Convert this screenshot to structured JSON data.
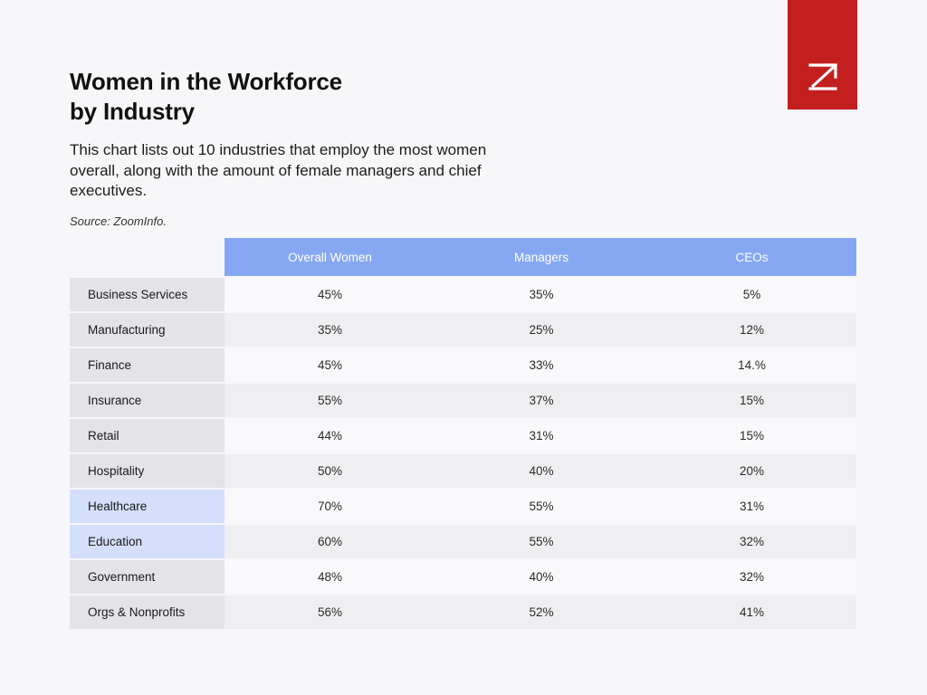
{
  "header": {
    "title_line1": "Women in the Workforce",
    "title_line2": "by Industry",
    "subtitle": "This chart lists out 10 industries that employ the most women overall, along with the amount of female managers and chief executives.",
    "source": "Source: ZoomInfo."
  },
  "brand": {
    "logo_color": "#c41f1f",
    "icon": "zoominfo-z-icon"
  },
  "colors": {
    "header_bg": "#86a8f2",
    "highlight_row_bg": "#d3dffb"
  },
  "chart_data": {
    "type": "table",
    "columns": [
      "Overall Women",
      "Managers",
      "CEOs"
    ],
    "rows": [
      {
        "industry": "Business Services",
        "overall_women": "45%",
        "managers": "35%",
        "ceos": "5%",
        "highlighted": false
      },
      {
        "industry": "Manufacturing",
        "overall_women": "35%",
        "managers": "25%",
        "ceos": "12%",
        "highlighted": false
      },
      {
        "industry": "Finance",
        "overall_women": "45%",
        "managers": "33%",
        "ceos": "14.%",
        "highlighted": false
      },
      {
        "industry": "Insurance",
        "overall_women": "55%",
        "managers": "37%",
        "ceos": "15%",
        "highlighted": false
      },
      {
        "industry": "Retail",
        "overall_women": "44%",
        "managers": "31%",
        "ceos": "15%",
        "highlighted": false
      },
      {
        "industry": "Hospitality",
        "overall_women": "50%",
        "managers": "40%",
        "ceos": "20%",
        "highlighted": false
      },
      {
        "industry": "Healthcare",
        "overall_women": "70%",
        "managers": "55%",
        "ceos": "31%",
        "highlighted": true
      },
      {
        "industry": "Education",
        "overall_women": "60%",
        "managers": "55%",
        "ceos": "32%",
        "highlighted": true
      },
      {
        "industry": "Government",
        "overall_women": "48%",
        "managers": "40%",
        "ceos": "32%",
        "highlighted": false
      },
      {
        "industry": "Orgs & Nonprofits",
        "overall_women": "56%",
        "managers": "52%",
        "ceos": "41%",
        "highlighted": false
      }
    ]
  }
}
